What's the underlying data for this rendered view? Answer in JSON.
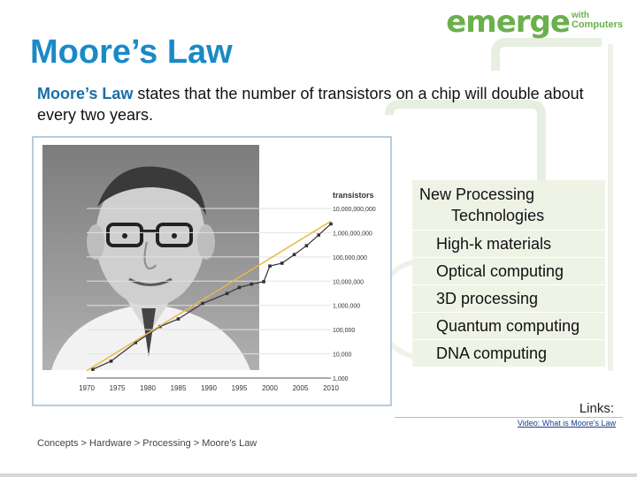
{
  "logo": {
    "main": "emerge",
    "with": "with",
    "computers": "Computers"
  },
  "slide": {
    "title": "Moore’s Law",
    "intro_term": "Moore’s Law",
    "intro_rest": " states that the number of transistors on a chip will double about every two years."
  },
  "chart_data": {
    "type": "line",
    "ylabel": "transistors",
    "log_scale": true,
    "x_ticks": [
      "1970",
      "1975",
      "1980",
      "1985",
      "1990",
      "1995",
      "2000",
      "2005",
      "2010"
    ],
    "y_ticks": [
      "1,000",
      "10,000",
      "100,000",
      "1,000,000",
      "10,000,000",
      "100,000,000",
      "1,000,000,000",
      "10,000,000,000"
    ],
    "xlim": [
      1970,
      2010
    ],
    "ylim": [
      1000,
      10000000000
    ],
    "grid": true,
    "series": [
      {
        "color": "#333333",
        "x": [
          1971,
          1974,
          1978,
          1982,
          1985,
          1989,
          1993,
          1995,
          1997,
          1999,
          2000,
          2002,
          2004,
          2006,
          2008,
          2010
        ],
        "y": [
          2300,
          5000,
          29000,
          134000,
          275000,
          1200000,
          3100000,
          5500000,
          7500000,
          9500000,
          42000000,
          55000000,
          125000000,
          290000000,
          800000000,
          2300000000
        ]
      },
      {
        "color": "#e8b84a",
        "x": [
          1970,
          2010
        ],
        "y": [
          2000,
          3000000000
        ]
      }
    ]
  },
  "tech_panel": {
    "heading_line1": "New Processing",
    "heading_line2": "Technologies",
    "items": [
      "High-k materials",
      "Optical computing",
      "3D processing",
      "Quantum computing",
      "DNA computing"
    ]
  },
  "links": {
    "label": "Links:",
    "video": "Video: What is Moore's Law"
  },
  "breadcrumb": {
    "items": [
      "Concepts",
      "Hardware",
      "Processing",
      "Moore's Law"
    ],
    "separator": " > "
  }
}
